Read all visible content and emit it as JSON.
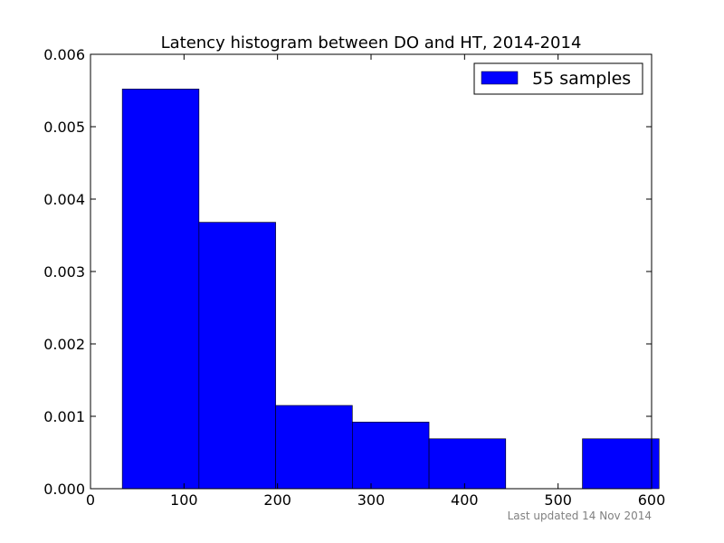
{
  "chart_data": {
    "type": "bar",
    "title": "Latency histogram between DO and HT, 2014-2014",
    "xlabel": "",
    "ylabel": "",
    "xlim": [
      0,
      600
    ],
    "ylim": [
      0,
      0.006
    ],
    "x_ticks": [
      0,
      100,
      200,
      300,
      400,
      500,
      600
    ],
    "x_tick_labels": [
      "0",
      "100",
      "200",
      "300",
      "400",
      "500",
      "600"
    ],
    "y_ticks": [
      0,
      0.001,
      0.002,
      0.003,
      0.004,
      0.005,
      0.006
    ],
    "y_tick_labels": [
      "0.000",
      "0.001",
      "0.002",
      "0.003",
      "0.004",
      "0.005",
      "0.006"
    ],
    "grid": false,
    "legend_position": "top-right",
    "series": [
      {
        "name": "55 samples",
        "color": "#0000ff",
        "bins": [
          {
            "start": 34,
            "end": 116,
            "value": 0.00552
          },
          {
            "start": 116,
            "end": 198,
            "value": 0.00368
          },
          {
            "start": 198,
            "end": 280,
            "value": 0.00115
          },
          {
            "start": 280,
            "end": 362,
            "value": 0.00092
          },
          {
            "start": 362,
            "end": 444,
            "value": 0.00069
          },
          {
            "start": 444,
            "end": 526,
            "value": 0
          },
          {
            "start": 526,
            "end": 608,
            "value": 0.00069
          }
        ]
      }
    ],
    "footer": "Last updated 14 Nov 2014"
  }
}
